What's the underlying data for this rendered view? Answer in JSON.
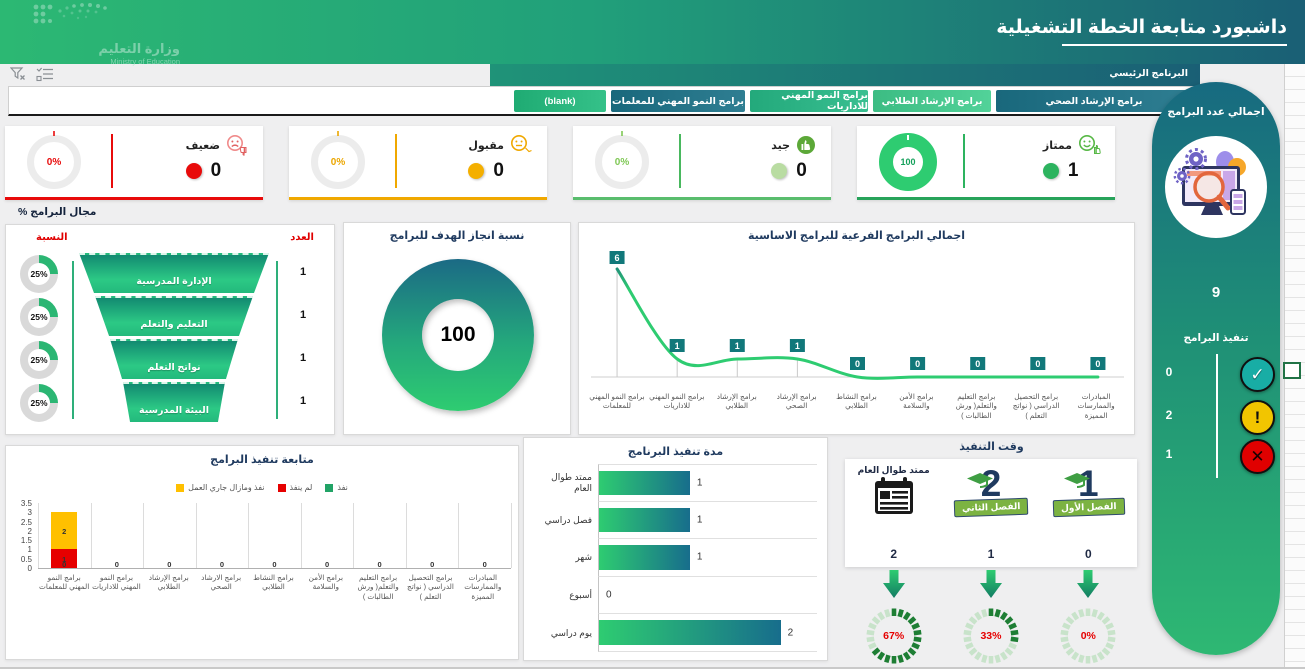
{
  "header": {
    "title": "داشبورد متابعة الخطة التشغيلية",
    "logo_title": "وزارة التعليم",
    "logo_subtitle": "Ministry of Education",
    "gradient": [
      "#2cb873",
      "#1a5f75"
    ]
  },
  "slicer": {
    "field_label": "البرنامج الرئيسي",
    "chips": [
      {
        "label": "برامج الإرشاد الصحي",
        "color": "#19687c"
      },
      {
        "label": "برامج الإرشاد الطلابي",
        "color": "#3cbc83"
      },
      {
        "label": "برامج النمو المهني للاداريات",
        "color": "#23a97b"
      },
      {
        "label": "برامج النمو المهني للمعلمات",
        "color": "#19687c"
      },
      {
        "label": "(blank)",
        "color": "#1fab73"
      }
    ]
  },
  "kpis": [
    {
      "label": "ممتاز",
      "count": "1",
      "ring_text": "100",
      "color": "#2db35f"
    },
    {
      "label": "جيد",
      "count": "0",
      "ring_text": "0%",
      "color": "#7fc855"
    },
    {
      "label": "مقبول",
      "count": "0",
      "ring_text": "0%",
      "color": "#f0a800"
    },
    {
      "label": "ضعيف",
      "count": "0",
      "ring_text": "0%",
      "color": "#e80b0b"
    }
  ],
  "chart_data": [
    {
      "type": "funnel",
      "title": "مجال البرامج %",
      "headers": {
        "percent": "النسبة",
        "count": "العدد"
      },
      "categories": [
        "الإدارة المدرسية",
        "التعليم والتعلم",
        "نواتج التعلم",
        "البيئة المدرسية"
      ],
      "percents": [
        "25%",
        "25%",
        "25%",
        "25%"
      ],
      "counts": [
        "1",
        "1",
        "1",
        "1"
      ],
      "accent": "#2bb673"
    },
    {
      "type": "donut",
      "title": "نسبة انجاز الهدف للبرامج",
      "value": "100",
      "colors": [
        "#1b6a85",
        "#2ecc71"
      ]
    },
    {
      "type": "line",
      "title": "اجمالي البرامج الفرعية للبرامج الاساسية",
      "categories": [
        "برامج النمو المهني للمعلمات",
        "برامج النمو المهني للاداريات",
        "برامج الإرشاد الطلابي",
        "برامج الإرشاد الصحي",
        "برامج النشاط الطلابي",
        "برامج الأمن والسلامة",
        "برامج التعليم والتعلم( ورش الطالبات )",
        "برامج التحصيل الدراسي ( نواتج التعلم )",
        "المبادرات والممارسات المميزة"
      ],
      "values": [
        6,
        1,
        1,
        1,
        0,
        0,
        0,
        0,
        0
      ],
      "ylim": [
        0,
        6
      ],
      "line_color": "#2ecc71",
      "label_box_color": "#11787a"
    },
    {
      "type": "bar",
      "title": "متابعة تنفيذ البرامج",
      "categories": [
        "برامج النمو المهني للمعلمات",
        "برامج النمو المهني للاداريات",
        "برامج الإرشاد الطلابي",
        "برامج الارشاد الصحي",
        "برامج النشاط الطلابي",
        "برامج الأمن والسلامة",
        "برامج التعليم والتعلم( ورش الطالبات )",
        "برامج التحصيل الدراسي ( نواتج التعلم )",
        "المبادرات والممارسات المميزة"
      ],
      "series": [
        {
          "name": "نفذ",
          "color": "#21a366",
          "values": [
            0,
            0,
            0,
            0,
            0,
            0,
            0,
            0,
            0
          ]
        },
        {
          "name": "لم ينفذ",
          "color": "#e60000",
          "values": [
            1,
            0,
            0,
            0,
            0,
            0,
            0,
            0,
            0
          ]
        },
        {
          "name": "نفذ ومازال جاري العمل",
          "color": "#ffc000",
          "values": [
            2,
            0,
            0,
            0,
            0,
            0,
            0,
            0,
            0
          ]
        }
      ],
      "ylim": [
        0,
        3.5
      ],
      "yticks": [
        "0",
        "0.5",
        "1",
        "1.5",
        "2",
        "2.5",
        "3",
        "3.5"
      ],
      "grid": true
    },
    {
      "type": "bar-horizontal",
      "title": "مدة تنفيذ البرنامج",
      "categories": [
        "ممتد طوال العام",
        "فصل دراسي",
        "شهر",
        "أسبوع",
        "يوم دراسي"
      ],
      "values": [
        1,
        1,
        1,
        0,
        2
      ],
      "xmax": 2.4,
      "bar_colors": [
        "#2ecc71",
        "#176d8c"
      ]
    },
    {
      "type": "gauge",
      "title": "وقت التنفيذ",
      "items": [
        {
          "label": "ممتد طوال العام",
          "icon": "calendar",
          "big": "",
          "count": "2",
          "percent": "67%",
          "pct": 67
        },
        {
          "label": "الفصل الثاني",
          "icon": "graduation-cap",
          "big": "2",
          "count": "1",
          "percent": "33%",
          "pct": 33
        },
        {
          "label": "الفصل الأول",
          "icon": "graduation-cap",
          "big": "1",
          "count": "0",
          "percent": "0%",
          "pct": 0
        }
      ],
      "gauge_colors": {
        "filled": "#1e7e34",
        "empty": "#c8e3ca",
        "text": "#e60000"
      }
    }
  ],
  "sidebar": {
    "total_label": "اجمالي عدد البرامج",
    "total": "9",
    "exec_label": "تنفيذ البرامج",
    "statuses": [
      {
        "icon": "check",
        "count": "0"
      },
      {
        "icon": "exclamation",
        "count": "2"
      },
      {
        "icon": "cross",
        "count": "1"
      }
    ]
  }
}
